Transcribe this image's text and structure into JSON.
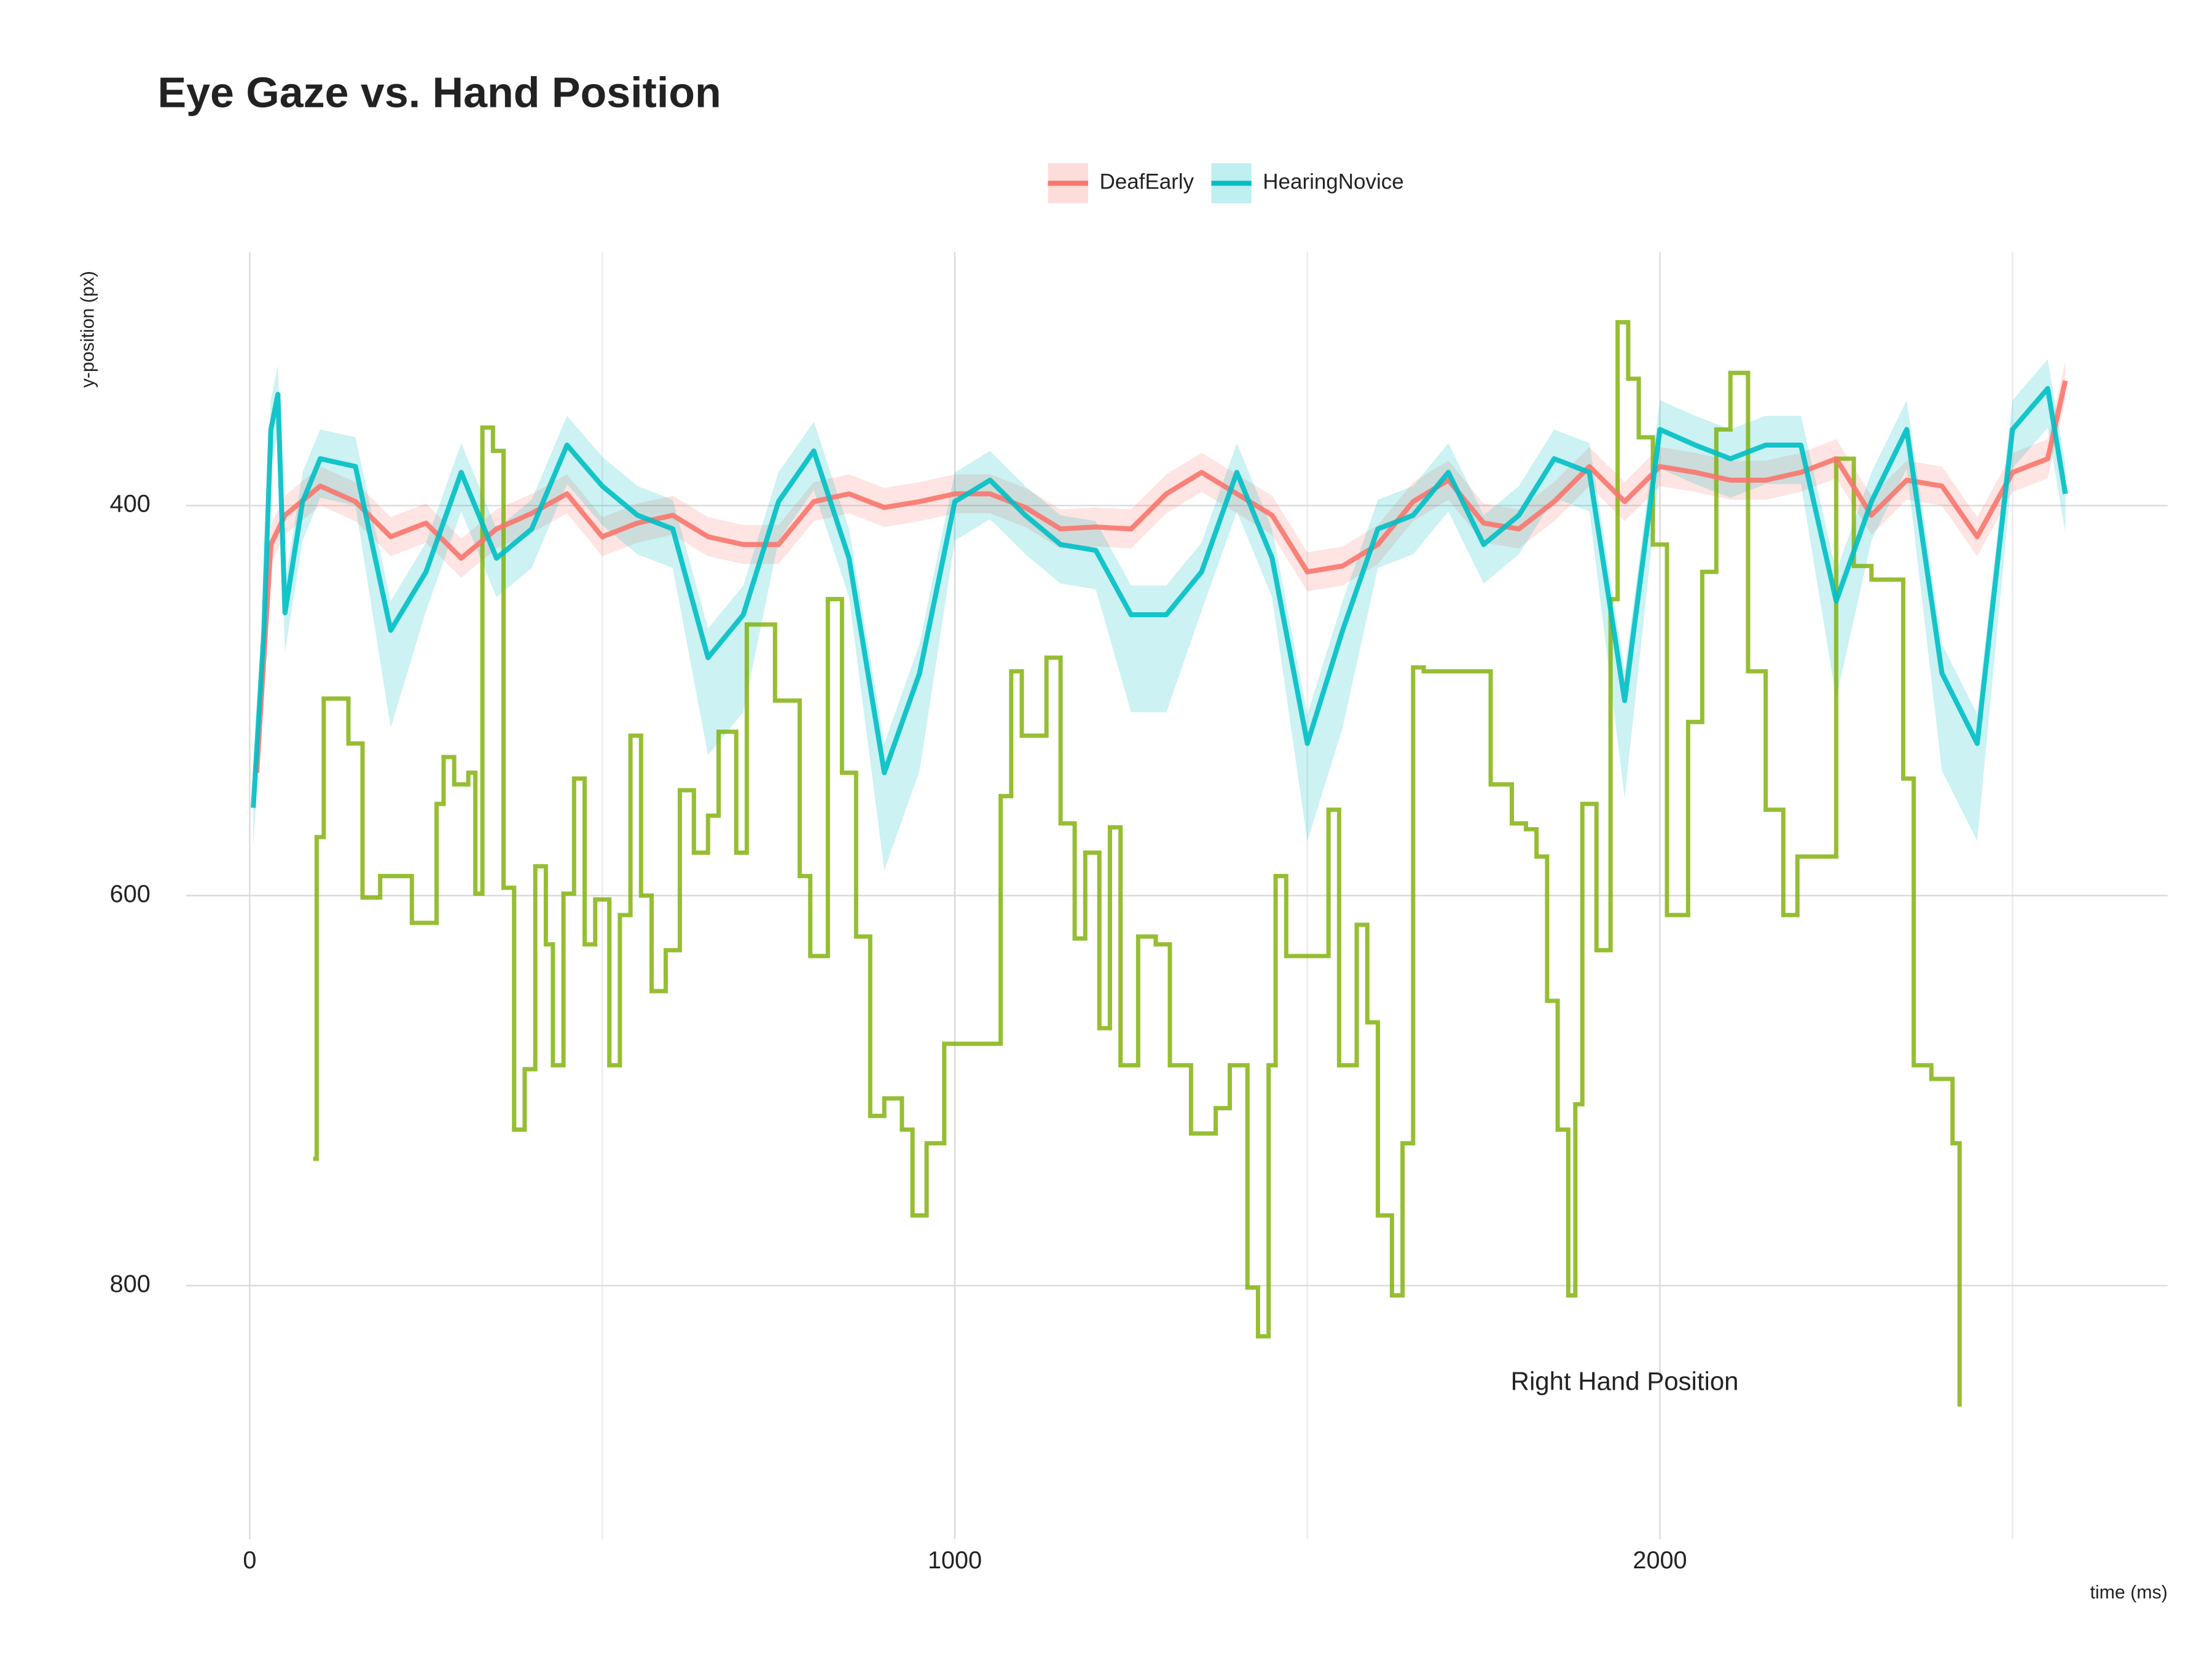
{
  "chart_data": {
    "type": "line",
    "title": "Eye Gaze vs. Hand Position",
    "x_label": "time (ms)",
    "y_label": "y-position (px)",
    "xlim": [
      -90,
      2720
    ],
    "xticks": [
      0,
      1000,
      2000
    ],
    "x_minor_ticks": [
      500,
      1500,
      2500
    ],
    "ylim": [
      270,
      930
    ],
    "yticks": [
      400,
      600,
      800
    ],
    "y_reversed": true,
    "grid": true,
    "legend_position": "top",
    "series": [
      {
        "name": "DeafEarly",
        "color": "#F8766D",
        "ribbon": true,
        "x": [
          10,
          30,
          50,
          100,
          150,
          200,
          250,
          300,
          350,
          400,
          450,
          500,
          550,
          600,
          650,
          700,
          750,
          800,
          850,
          900,
          950,
          1000,
          1050,
          1100,
          1150,
          1200,
          1250,
          1300,
          1350,
          1400,
          1450,
          1500,
          1550,
          1600,
          1650,
          1700,
          1750,
          1800,
          1850,
          1900,
          1950,
          2000,
          2050,
          2100,
          2150,
          2200,
          2250,
          2300,
          2350,
          2400,
          2450,
          2500,
          2550,
          2575
        ],
        "values": [
          537,
          420,
          405,
          390,
          398,
          416,
          409,
          427,
          412,
          404,
          394,
          416,
          409,
          405,
          416,
          420,
          420,
          398,
          394,
          401,
          398,
          394,
          394,
          401,
          412,
          411,
          412,
          394,
          383,
          394,
          405,
          434,
          431,
          420,
          398,
          387,
          409,
          412,
          398,
          380,
          398,
          380,
          383,
          387,
          387,
          383,
          376,
          405,
          387,
          390,
          416,
          383,
          376,
          336
        ],
        "ci_low": [
          527,
          410,
          395,
          380,
          388,
          406,
          399,
          417,
          402,
          394,
          384,
          406,
          399,
          395,
          406,
          410,
          410,
          388,
          384,
          391,
          388,
          384,
          384,
          391,
          402,
          401,
          402,
          384,
          373,
          384,
          395,
          424,
          421,
          410,
          388,
          377,
          399,
          402,
          388,
          370,
          388,
          370,
          373,
          377,
          377,
          373,
          366,
          395,
          377,
          380,
          406,
          373,
          366,
          326
        ],
        "ci_high": [
          547,
          430,
          415,
          400,
          408,
          426,
          419,
          437,
          422,
          414,
          404,
          426,
          419,
          415,
          426,
          430,
          430,
          408,
          404,
          411,
          408,
          404,
          404,
          411,
          422,
          421,
          422,
          404,
          393,
          404,
          415,
          444,
          441,
          430,
          408,
          397,
          419,
          422,
          408,
          390,
          408,
          390,
          393,
          397,
          397,
          393,
          386,
          415,
          397,
          400,
          426,
          393,
          386,
          346
        ]
      },
      {
        "name": "HearingNovice",
        "color": "#00BFC4",
        "ribbon": true,
        "x": [
          5,
          20,
          30,
          40,
          50,
          75,
          100,
          150,
          200,
          250,
          300,
          350,
          400,
          450,
          500,
          550,
          600,
          650,
          700,
          750,
          800,
          850,
          900,
          950,
          1000,
          1050,
          1100,
          1150,
          1200,
          1250,
          1300,
          1350,
          1400,
          1450,
          1500,
          1550,
          1600,
          1650,
          1700,
          1750,
          1800,
          1850,
          1900,
          1950,
          2000,
          2050,
          2100,
          2150,
          2200,
          2250,
          2300,
          2350,
          2400,
          2450,
          2500,
          2550,
          2575
        ],
        "values": [
          555,
          465,
          361,
          343,
          455,
          398,
          376,
          380,
          464,
          434,
          383,
          427,
          412,
          369,
          390,
          405,
          412,
          478,
          456,
          398,
          372,
          427,
          537,
          486,
          398,
          387,
          405,
          420,
          423,
          456,
          456,
          434,
          383,
          427,
          522,
          464,
          412,
          405,
          383,
          420,
          405,
          376,
          383,
          500,
          361,
          369,
          376,
          369,
          369,
          449,
          398,
          361,
          486,
          522,
          361,
          340,
          394
        ],
        "ci_low": [
          540,
          450,
          346,
          328,
          440,
          383,
          361,
          365,
          449,
          419,
          368,
          412,
          397,
          354,
          375,
          390,
          397,
          463,
          441,
          383,
          357,
          412,
          522,
          471,
          383,
          372,
          390,
          405,
          408,
          441,
          441,
          419,
          368,
          412,
          507,
          449,
          397,
          390,
          368,
          405,
          390,
          361,
          368,
          485,
          346,
          354,
          361,
          354,
          354,
          434,
          383,
          346,
          471,
          507,
          346,
          325,
          379
        ],
        "ci_high": [
          575,
          485,
          381,
          363,
          475,
          418,
          396,
          400,
          514,
          454,
          403,
          447,
          432,
          389,
          410,
          425,
          432,
          528,
          506,
          418,
          392,
          447,
          587,
          536,
          418,
          407,
          425,
          440,
          443,
          506,
          506,
          454,
          403,
          447,
          572,
          514,
          432,
          425,
          403,
          440,
          425,
          396,
          403,
          550,
          381,
          389,
          396,
          389,
          389,
          499,
          418,
          381,
          536,
          572,
          381,
          360,
          414
        ]
      },
      {
        "color": "#7CAE00",
        "step": true,
        "x": [
          90,
          95,
          105,
          140,
          160,
          185,
          230,
          265,
          275,
          290,
          310,
          320,
          330,
          345,
          360,
          375,
          390,
          405,
          420,
          430,
          445,
          460,
          475,
          490,
          510,
          525,
          540,
          555,
          570,
          590,
          610,
          630,
          650,
          665,
          690,
          705,
          745,
          780,
          795,
          820,
          840,
          860,
          880,
          900,
          925,
          940,
          960,
          985,
          1065,
          1080,
          1095,
          1130,
          1150,
          1170,
          1185,
          1205,
          1220,
          1235,
          1260,
          1285,
          1305,
          1335,
          1370,
          1390,
          1415,
          1430,
          1445,
          1455,
          1470,
          1530,
          1545,
          1570,
          1585,
          1600,
          1620,
          1635,
          1650,
          1665,
          1700,
          1760,
          1790,
          1810,
          1825,
          1840,
          1855,
          1870,
          1880,
          1890,
          1910,
          1930,
          1940,
          1955,
          1970,
          1990,
          2010,
          2040,
          2060,
          2080,
          2100,
          2125,
          2150,
          2175,
          2195,
          2220,
          2250,
          2275,
          2300,
          2345,
          2360,
          2385,
          2415,
          2425
        ],
        "values": [
          735,
          570,
          499,
          522,
          601,
          590,
          614,
          553,
          529,
          543,
          537,
          599,
          360,
          372,
          596,
          720,
          689,
          585,
          625,
          687,
          599,
          540,
          625,
          602,
          687,
          610,
          518,
          600,
          649,
          628,
          546,
          578,
          559,
          516,
          578,
          461,
          500,
          590,
          631,
          448,
          537,
          621,
          713,
          704,
          720,
          764,
          727,
          676,
          549,
          485,
          518,
          478,
          563,
          622,
          578,
          668,
          565,
          687,
          621,
          625,
          687,
          722,
          709,
          687,
          801,
          826,
          687,
          590,
          631,
          556,
          687,
          615,
          665,
          764,
          805,
          727,
          483,
          485,
          485,
          543,
          563,
          566,
          580,
          654,
          720,
          805,
          707,
          553,
          628,
          448,
          306,
          335,
          365,
          420,
          610,
          511,
          434,
          361,
          332,
          485,
          556,
          610,
          580,
          580,
          376,
          431,
          438,
          540,
          687,
          694,
          727,
          862
        ]
      }
    ],
    "annotations": [
      {
        "text": "Right Hand Position",
        "x": 1950,
        "y": 850,
        "color": "#7CAE00"
      }
    ]
  }
}
